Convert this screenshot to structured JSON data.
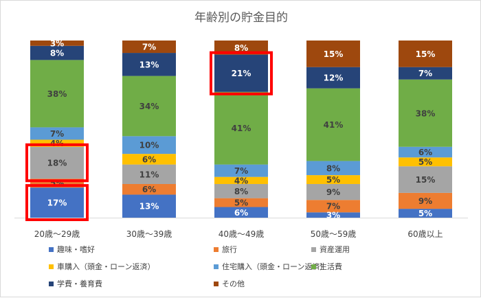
{
  "chart_data": {
    "type": "bar",
    "stacked": "percent",
    "title": "年齢別の貯金目的",
    "categories": [
      "20歳～29歳",
      "30歳～39歳",
      "40歳～49歳",
      "50歳～59歳",
      "60歳以上"
    ],
    "series": [
      {
        "name": "趣味・嗜好",
        "color": "#4472c4",
        "values": [
          17,
          13,
          6,
          3,
          5
        ]
      },
      {
        "name": "旅行",
        "color": "#ed7d31",
        "values": [
          5,
          6,
          5,
          7,
          9
        ]
      },
      {
        "name": "資産運用",
        "color": "#a5a5a5",
        "values": [
          18,
          11,
          8,
          9,
          15
        ]
      },
      {
        "name": "車購入（頭金・ローン返済）",
        "color": "#ffc000",
        "values": [
          4,
          6,
          4,
          5,
          5
        ]
      },
      {
        "name": "住宅購入（頭金・ローン返済）",
        "color": "#5b9bd5",
        "values": [
          7,
          10,
          7,
          8,
          6
        ]
      },
      {
        "name": "生活費",
        "color": "#70ad47",
        "values": [
          38,
          34,
          41,
          41,
          38
        ]
      },
      {
        "name": "学費・養育費",
        "color": "#264478",
        "values": [
          8,
          13,
          21,
          12,
          7
        ]
      },
      {
        "name": "その他",
        "color": "#9e480e",
        "values": [
          3,
          7,
          8,
          15,
          15
        ]
      }
    ],
    "value_suffix": "%",
    "label_colors": {
      "趣味・嗜好": "#ffffff",
      "学費・養育費": "#ffffff",
      "その他": "#ffffff"
    },
    "highlight_color": "#ff0000",
    "highlights": [
      {
        "category": "20歳～29歳",
        "series": "資産運用"
      },
      {
        "category": "20歳～29歳",
        "series": "趣味・嗜好"
      },
      {
        "category": "40歳～49歳",
        "series": "学費・養育費"
      }
    ],
    "legend_position": "bottom",
    "grid": false
  }
}
